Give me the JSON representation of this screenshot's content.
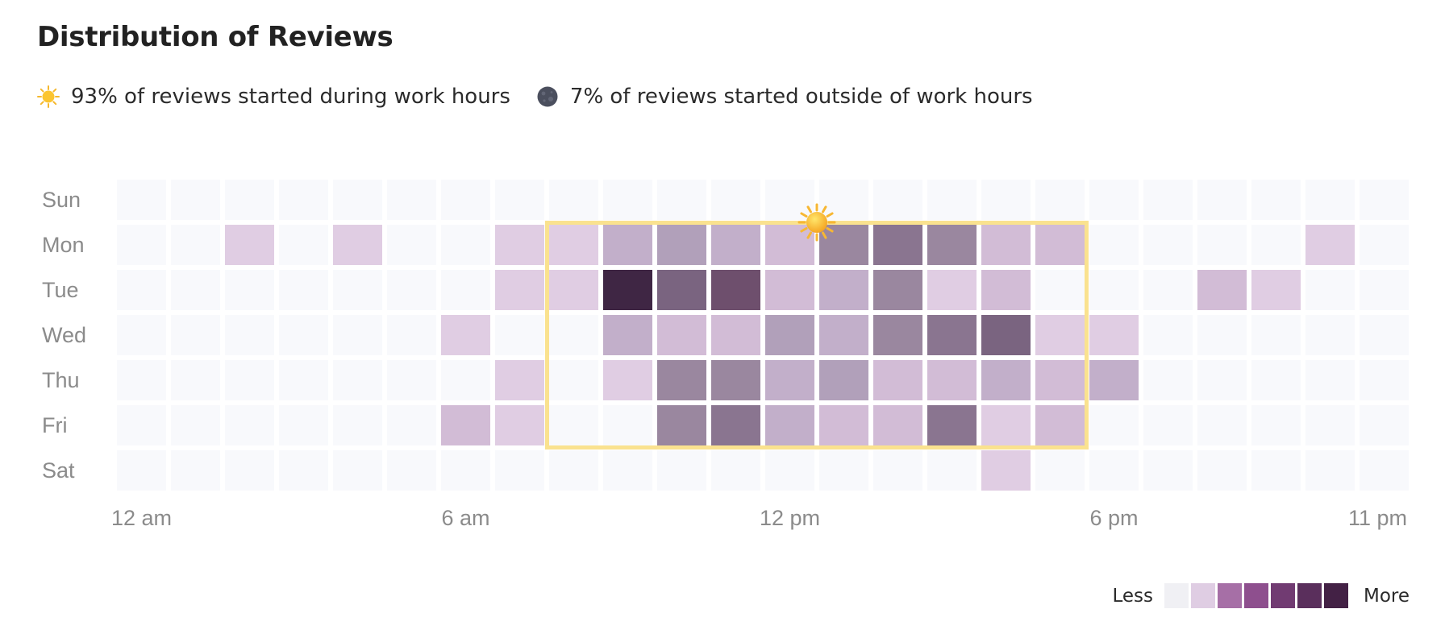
{
  "title": "Distribution of Reviews",
  "summary": {
    "work_hours": {
      "icon": "sun-icon",
      "text": "93% of reviews started during work hours"
    },
    "outside_hours": {
      "icon": "moon-icon",
      "text": "7% of reviews started outside of work hours"
    }
  },
  "chart_data": {
    "type": "heatmap",
    "title": "Distribution of Reviews",
    "y_categories": [
      "Sun",
      "Mon",
      "Tue",
      "Wed",
      "Thu",
      "Fri",
      "Sat"
    ],
    "x_categories": [
      0,
      1,
      2,
      3,
      4,
      5,
      6,
      7,
      8,
      9,
      10,
      11,
      12,
      13,
      14,
      15,
      16,
      17,
      18,
      19,
      20,
      21,
      22,
      23
    ],
    "x_tick_labels": [
      {
        "hour": 0,
        "label": "12 am"
      },
      {
        "hour": 6,
        "label": "6 am"
      },
      {
        "hour": 12,
        "label": "12 pm"
      },
      {
        "hour": 18,
        "label": "6 pm"
      },
      {
        "hour": 23,
        "label": "11 pm"
      }
    ],
    "values": [
      [
        0,
        0,
        0,
        0,
        0,
        0,
        0,
        0,
        0,
        0,
        0,
        0,
        0,
        0,
        0,
        0,
        0,
        0,
        0,
        0,
        0,
        0,
        0,
        0
      ],
      [
        0,
        0,
        1,
        0,
        1,
        0,
        0,
        1,
        1,
        3,
        4,
        3,
        2,
        5,
        6,
        5,
        2,
        2,
        0,
        0,
        0,
        0,
        1,
        0
      ],
      [
        0,
        0,
        0,
        0,
        0,
        0,
        0,
        1,
        1,
        10,
        7,
        8,
        2,
        3,
        5,
        1,
        2,
        0,
        0,
        0,
        2,
        1,
        0,
        0
      ],
      [
        0,
        0,
        0,
        0,
        0,
        0,
        1,
        0,
        0,
        3,
        2,
        2,
        4,
        3,
        5,
        6,
        7,
        1,
        1,
        0,
        0,
        0,
        0,
        0
      ],
      [
        0,
        0,
        0,
        0,
        0,
        0,
        0,
        1,
        0,
        1,
        5,
        5,
        3,
        4,
        2,
        2,
        3,
        2,
        3,
        0,
        0,
        0,
        0,
        0
      ],
      [
        0,
        0,
        0,
        0,
        0,
        0,
        2,
        1,
        0,
        0,
        5,
        6,
        3,
        2,
        2,
        6,
        1,
        2,
        0,
        0,
        0,
        0,
        0,
        0
      ],
      [
        0,
        0,
        0,
        0,
        0,
        0,
        0,
        0,
        0,
        0,
        0,
        0,
        0,
        0,
        0,
        0,
        1,
        0,
        0,
        0,
        0,
        0,
        0,
        0
      ]
    ],
    "work_hours": {
      "start_hour": 8,
      "end_hour": 18,
      "days": [
        "Mon",
        "Tue",
        "Wed",
        "Thu",
        "Fri"
      ]
    },
    "color_scale": [
      "#f8f9fc",
      "#e0cde3",
      "#d2bcd6",
      "#c2afca",
      "#b1a0ba",
      "#9a879f",
      "#8a7590",
      "#7a6480",
      "#6e4f6d",
      "#5a4260",
      "#3f2644"
    ],
    "legend": {
      "less_label": "Less",
      "more_label": "More",
      "swatches": [
        "#f0f0f4",
        "#dfcde3",
        "#a66fa6",
        "#8e4f8e",
        "#713b72",
        "#5a2f5c",
        "#432145"
      ]
    }
  }
}
